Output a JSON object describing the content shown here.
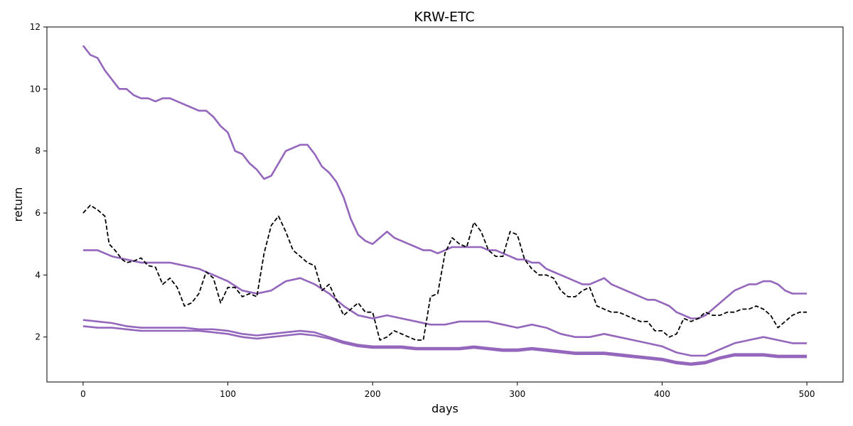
{
  "chart_data": {
    "type": "line",
    "title": "KRW-ETC",
    "xlabel": "days",
    "ylabel": "return",
    "xlim": [
      -25,
      525
    ],
    "ylim": [
      0.55,
      12.0
    ],
    "xticks": [
      0,
      100,
      200,
      300,
      400,
      500
    ],
    "yticks": [
      2,
      4,
      6,
      8,
      10,
      12
    ],
    "grid": false,
    "legend": "none",
    "series": [
      {
        "role": "price",
        "style": "dashed",
        "color": "#000000",
        "x": [
          0,
          5,
          10,
          15,
          18,
          22,
          27,
          30,
          35,
          40,
          45,
          50,
          55,
          60,
          65,
          70,
          75,
          80,
          85,
          90,
          95,
          100,
          105,
          110,
          115,
          120,
          125,
          130,
          135,
          140,
          145,
          150,
          155,
          160,
          165,
          170,
          175,
          180,
          185,
          190,
          195,
          200,
          205,
          210,
          215,
          220,
          225,
          230,
          235,
          240,
          245,
          250,
          255,
          260,
          265,
          270,
          275,
          280,
          285,
          290,
          295,
          300,
          305,
          310,
          315,
          320,
          325,
          330,
          335,
          340,
          345,
          350,
          355,
          360,
          365,
          370,
          375,
          380,
          385,
          390,
          395,
          400,
          405,
          410,
          415,
          420,
          425,
          430,
          435,
          440,
          445,
          450,
          455,
          460,
          465,
          470,
          475,
          480,
          485,
          490,
          495,
          500
        ],
        "y": [
          6.0,
          6.25,
          6.1,
          5.9,
          5.0,
          4.8,
          4.5,
          4.4,
          4.45,
          4.55,
          4.3,
          4.25,
          3.7,
          3.9,
          3.6,
          3.0,
          3.1,
          3.4,
          4.1,
          3.9,
          3.1,
          3.6,
          3.6,
          3.3,
          3.4,
          3.3,
          4.7,
          5.6,
          5.9,
          5.4,
          4.8,
          4.6,
          4.4,
          4.3,
          3.5,
          3.7,
          3.2,
          2.7,
          2.9,
          3.1,
          2.8,
          2.8,
          1.9,
          2.0,
          2.2,
          2.1,
          2.0,
          1.9,
          1.9,
          3.3,
          3.4,
          4.7,
          5.2,
          5.0,
          4.9,
          5.7,
          5.4,
          4.8,
          4.6,
          4.6,
          5.4,
          5.3,
          4.5,
          4.2,
          4.0,
          4.0,
          3.9,
          3.5,
          3.3,
          3.3,
          3.5,
          3.6,
          3.0,
          2.9,
          2.8,
          2.8,
          2.7,
          2.6,
          2.5,
          2.5,
          2.2,
          2.2,
          2.0,
          2.1,
          2.6,
          2.5,
          2.6,
          2.8,
          2.7,
          2.7,
          2.8,
          2.8,
          2.9,
          2.9,
          3.0,
          2.9,
          2.7,
          2.3,
          2.5,
          2.7,
          2.8,
          2.8
        ]
      },
      {
        "role": "upper-band",
        "style": "solid",
        "color": "#9467bd",
        "x": [
          0,
          5,
          10,
          15,
          20,
          25,
          30,
          35,
          40,
          45,
          50,
          55,
          60,
          65,
          70,
          75,
          80,
          85,
          90,
          95,
          100,
          105,
          110,
          115,
          120,
          125,
          130,
          135,
          140,
          145,
          150,
          155,
          160,
          165,
          170,
          175,
          180,
          185,
          190,
          195,
          200,
          205,
          210,
          215,
          220,
          225,
          230,
          235,
          240,
          245,
          250,
          255,
          260,
          265,
          270,
          275,
          280,
          285,
          290,
          295,
          300,
          305,
          310,
          315,
          320,
          325,
          330,
          335,
          340,
          345,
          350,
          355,
          360,
          365,
          370,
          375,
          380,
          385,
          390,
          395,
          400,
          405,
          410,
          415,
          420,
          425,
          430,
          435,
          440,
          445,
          450,
          455,
          460,
          465,
          470,
          475,
          480,
          485,
          490,
          495,
          500
        ],
        "y": [
          11.4,
          11.1,
          11.0,
          10.6,
          10.3,
          10.0,
          10.0,
          9.8,
          9.7,
          9.7,
          9.6,
          9.7,
          9.7,
          9.6,
          9.5,
          9.4,
          9.3,
          9.3,
          9.1,
          8.8,
          8.6,
          8.0,
          7.9,
          7.6,
          7.4,
          7.1,
          7.2,
          7.6,
          8.0,
          8.1,
          8.2,
          8.2,
          7.9,
          7.5,
          7.3,
          7.0,
          6.5,
          5.8,
          5.3,
          5.1,
          5.0,
          5.2,
          5.4,
          5.2,
          5.1,
          5.0,
          4.9,
          4.8,
          4.8,
          4.7,
          4.8,
          4.9,
          4.9,
          4.9,
          4.9,
          4.9,
          4.8,
          4.8,
          4.7,
          4.6,
          4.5,
          4.5,
          4.4,
          4.4,
          4.2,
          4.1,
          4.0,
          3.9,
          3.8,
          3.7,
          3.7,
          3.8,
          3.9,
          3.7,
          3.6,
          3.5,
          3.4,
          3.3,
          3.2,
          3.2,
          3.1,
          3.0,
          2.8,
          2.7,
          2.6,
          2.6,
          2.7,
          2.9,
          3.1,
          3.3,
          3.5,
          3.6,
          3.7,
          3.7,
          3.8,
          3.8,
          3.7,
          3.5,
          3.4,
          3.4,
          3.4
        ]
      },
      {
        "role": "middle-band",
        "style": "solid",
        "color": "#9467bd",
        "x": [
          0,
          10,
          20,
          30,
          40,
          50,
          60,
          70,
          80,
          90,
          100,
          110,
          120,
          130,
          140,
          150,
          160,
          170,
          180,
          190,
          200,
          210,
          220,
          230,
          240,
          250,
          260,
          270,
          280,
          290,
          300,
          310,
          320,
          330,
          340,
          350,
          360,
          370,
          380,
          390,
          400,
          410,
          420,
          430,
          440,
          450,
          460,
          470,
          480,
          490,
          500
        ],
        "y": [
          4.8,
          4.8,
          4.6,
          4.5,
          4.4,
          4.4,
          4.4,
          4.3,
          4.2,
          4.0,
          3.8,
          3.5,
          3.4,
          3.5,
          3.8,
          3.9,
          3.7,
          3.4,
          3.0,
          2.7,
          2.6,
          2.7,
          2.6,
          2.5,
          2.4,
          2.4,
          2.5,
          2.5,
          2.5,
          2.4,
          2.3,
          2.4,
          2.3,
          2.1,
          2.0,
          2.0,
          2.1,
          2.0,
          1.9,
          1.8,
          1.7,
          1.5,
          1.4,
          1.4,
          1.6,
          1.8,
          1.9,
          2.0,
          1.9,
          1.8,
          1.8
        ]
      },
      {
        "role": "lower-band-a",
        "style": "solid",
        "color": "#9467bd",
        "x": [
          0,
          10,
          20,
          30,
          40,
          50,
          60,
          70,
          80,
          90,
          100,
          110,
          120,
          130,
          140,
          150,
          160,
          170,
          180,
          190,
          200,
          210,
          220,
          230,
          240,
          250,
          260,
          270,
          280,
          290,
          300,
          310,
          320,
          330,
          340,
          350,
          360,
          370,
          380,
          390,
          400,
          410,
          420,
          430,
          440,
          450,
          460,
          470,
          480,
          490,
          500
        ],
        "y": [
          2.55,
          2.5,
          2.45,
          2.35,
          2.3,
          2.3,
          2.3,
          2.3,
          2.25,
          2.25,
          2.2,
          2.1,
          2.05,
          2.1,
          2.15,
          2.2,
          2.15,
          2.0,
          1.85,
          1.75,
          1.7,
          1.7,
          1.7,
          1.65,
          1.65,
          1.65,
          1.65,
          1.7,
          1.65,
          1.6,
          1.6,
          1.65,
          1.6,
          1.55,
          1.5,
          1.5,
          1.5,
          1.45,
          1.4,
          1.35,
          1.3,
          1.2,
          1.15,
          1.2,
          1.35,
          1.45,
          1.45,
          1.45,
          1.4,
          1.4,
          1.4
        ]
      },
      {
        "role": "lower-band-b",
        "style": "solid",
        "color": "#9467bd",
        "x": [
          0,
          10,
          20,
          30,
          40,
          50,
          60,
          70,
          80,
          90,
          100,
          110,
          120,
          130,
          140,
          150,
          160,
          170,
          180,
          190,
          200,
          210,
          220,
          230,
          240,
          250,
          260,
          270,
          280,
          290,
          300,
          310,
          320,
          330,
          340,
          350,
          360,
          370,
          380,
          390,
          400,
          410,
          420,
          430,
          440,
          450,
          460,
          470,
          480,
          490,
          500
        ],
        "y": [
          2.35,
          2.3,
          2.3,
          2.25,
          2.2,
          2.2,
          2.2,
          2.2,
          2.2,
          2.15,
          2.1,
          2.0,
          1.95,
          2.0,
          2.05,
          2.1,
          2.05,
          1.95,
          1.8,
          1.7,
          1.65,
          1.65,
          1.65,
          1.6,
          1.6,
          1.6,
          1.6,
          1.65,
          1.6,
          1.55,
          1.55,
          1.6,
          1.55,
          1.5,
          1.45,
          1.45,
          1.45,
          1.4,
          1.35,
          1.3,
          1.25,
          1.15,
          1.1,
          1.15,
          1.3,
          1.4,
          1.4,
          1.4,
          1.35,
          1.35,
          1.35
        ]
      }
    ]
  }
}
